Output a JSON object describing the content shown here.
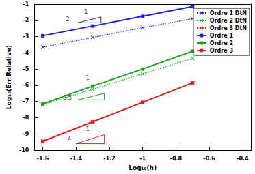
{
  "chart_data": {
    "type": "line",
    "x_label": "Log₁₀(h)",
    "y_label": "Log₁₀(Err Relative)",
    "xlim": [
      -1.65,
      -0.35
    ],
    "xticks": [
      -1.6,
      -1.4,
      -1.2,
      -1,
      -0.8,
      -0.6,
      -0.4
    ],
    "ylim": [
      -10,
      -1
    ],
    "yticks": [
      -10,
      -9,
      -8,
      -7,
      -6,
      -5,
      -4,
      -3,
      -2,
      -1
    ],
    "grid": false,
    "legend": "top-right",
    "x": [
      -1.6,
      -1.3,
      -1,
      -0.7
    ],
    "series": [
      {
        "name": "Ordre 1 DtN",
        "color": "#2020e0",
        "line_style": "dotted",
        "marker": "x",
        "values": [
          -3.65,
          -3.05,
          -2.45,
          -1.9
        ]
      },
      {
        "name": "Ordre 2 DtN",
        "color": "#20a020",
        "line_style": "dotted",
        "marker": "x",
        "values": [
          -7.2,
          -6.25,
          -5.3,
          -4.35
        ]
      },
      {
        "name": "Ordre 3 DtN",
        "color": "#e02020",
        "line_style": "dotted",
        "marker": "x",
        "values": [
          -9.45,
          -8.25,
          -7.05,
          -5.85
        ]
      },
      {
        "name": "Ordre 1",
        "color": "#2020e0",
        "line_style": "solid",
        "marker": "square",
        "values": [
          -2.95,
          -2.35,
          -1.75,
          -1.15
        ]
      },
      {
        "name": "Ordre 2",
        "color": "#20a020",
        "line_style": "solid",
        "marker": "square",
        "values": [
          -7.15,
          -6.05,
          -5.0,
          -3.9
        ]
      },
      {
        "name": "Ordre 3",
        "color": "#e02020",
        "line_style": "solid",
        "marker": "square",
        "values": [
          -9.45,
          -8.25,
          -7.05,
          -5.85
        ]
      }
    ],
    "annotations": [
      {
        "color": "#2020e0",
        "triangle": [
          [
            -1.39,
            -2.15
          ],
          [
            -1.25,
            -2.15
          ],
          [
            -1.25,
            -1.8
          ]
        ],
        "labels": [
          {
            "text": "2",
            "x": -1.45,
            "y": -1.95
          },
          {
            "text": "1",
            "x": -1.34,
            "y": -1.5
          }
        ]
      },
      {
        "color": "#20a020",
        "triangle": [
          [
            -1.39,
            -6.9
          ],
          [
            -1.23,
            -6.9
          ],
          [
            -1.23,
            -6.5
          ]
        ],
        "labels": [
          {
            "text": "3.5",
            "x": -1.45,
            "y": -6.8
          },
          {
            "text": "1",
            "x": -1.33,
            "y": -5.55
          }
        ]
      },
      {
        "color": "#e02020",
        "triangle": [
          [
            -1.4,
            -9.6
          ],
          [
            -1.23,
            -9.6
          ],
          [
            -1.23,
            -9.05
          ]
        ],
        "labels": [
          {
            "text": "4",
            "x": -1.44,
            "y": -9.3
          },
          {
            "text": "1",
            "x": -1.33,
            "y": -8.7
          }
        ]
      }
    ]
  }
}
